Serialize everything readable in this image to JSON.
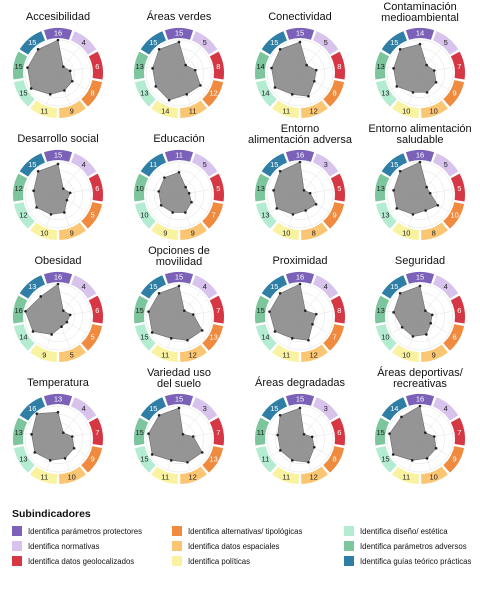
{
  "categories": [
    {
      "name": "Identifica parámetros protectores",
      "color": "#7b62b8"
    },
    {
      "name": "Identifica normativas",
      "color": "#d8c3ec"
    },
    {
      "name": "Identifica datos geolocalizados",
      "color": "#d53844"
    },
    {
      "name": "Identifica alternativas/ tipológicas",
      "color": "#ef8a3e"
    },
    {
      "name": "Identifica datos espaciales",
      "color": "#fbc673"
    },
    {
      "name": "Identifica políticas",
      "color": "#f9f3a1"
    },
    {
      "name": "Identifica diseño/ estética",
      "color": "#b4ecd2"
    },
    {
      "name": "Identifica parámetros adversos",
      "color": "#7cc59d"
    },
    {
      "name": "Identifica guías teórico prácticas",
      "color": "#2f7ea6"
    }
  ],
  "legend": {
    "title": "Subindicadores",
    "columns": [
      [
        0,
        1,
        2
      ],
      [
        3,
        4,
        5
      ],
      [
        6,
        7,
        8
      ]
    ]
  },
  "chart_data": [
    {
      "type": "radar",
      "title": "Accesibilidad",
      "values": [
        16,
        4,
        6,
        8,
        9,
        11,
        15,
        15,
        15
      ]
    },
    {
      "type": "radar",
      "title": "Áreas verdes",
      "values": [
        15,
        5,
        8,
        12,
        11,
        14,
        13,
        13,
        15
      ]
    },
    {
      "type": "radar",
      "title": "Conectividad",
      "values": [
        15,
        5,
        8,
        8,
        12,
        11,
        14,
        14,
        15
      ]
    },
    {
      "type": "radar",
      "title": "Contaminación medioambiental",
      "values": [
        14,
        5,
        7,
        9,
        10,
        10,
        13,
        13,
        15
      ]
    },
    {
      "type": "radar",
      "title": "Desarrollo social",
      "values": [
        15,
        4,
        6,
        5,
        9,
        10,
        12,
        12,
        15
      ]
    },
    {
      "type": "radar",
      "title": "Educación",
      "values": [
        11,
        5,
        5,
        7,
        9,
        9,
        10,
        10,
        11
      ]
    },
    {
      "type": "radar",
      "title": "Entorno alimentación adversa",
      "values": [
        16,
        3,
        5,
        9,
        8,
        10,
        13,
        13,
        15
      ]
    },
    {
      "type": "radar",
      "title": "Entorno alimentación saludable",
      "values": [
        16,
        5,
        5,
        10,
        8,
        10,
        13,
        13,
        15
      ]
    },
    {
      "type": "radar",
      "title": "Obesidad",
      "values": [
        16,
        4,
        6,
        5,
        5,
        9,
        14,
        16,
        13
      ]
    },
    {
      "type": "radar",
      "title": "Opciones de movilidad",
      "values": [
        15,
        4,
        7,
        13,
        12,
        11,
        15,
        15,
        15
      ]
    },
    {
      "type": "radar",
      "title": "Proximidad",
      "values": [
        16,
        4,
        8,
        7,
        12,
        11,
        14,
        15,
        15
      ]
    },
    {
      "type": "radar",
      "title": "Seguridad",
      "values": [
        15,
        4,
        6,
        6,
        9,
        10,
        10,
        13,
        15
      ]
    },
    {
      "type": "radar",
      "title": "Temperatura",
      "values": [
        13,
        4,
        7,
        9,
        10,
        11,
        13,
        13,
        16
      ]
    },
    {
      "type": "radar",
      "title": "Variedad uso del suelo",
      "values": [
        15,
        3,
        7,
        13,
        12,
        11,
        15,
        15,
        15
      ]
    },
    {
      "type": "radar",
      "title": "Áreas degradadas",
      "values": [
        15,
        3,
        6,
        8,
        12,
        11,
        11,
        11,
        15
      ]
    },
    {
      "type": "radar",
      "title": "Áreas deportivas/ recreativas",
      "values": [
        16,
        4,
        7,
        9,
        10,
        11,
        15,
        15,
        14
      ]
    }
  ]
}
